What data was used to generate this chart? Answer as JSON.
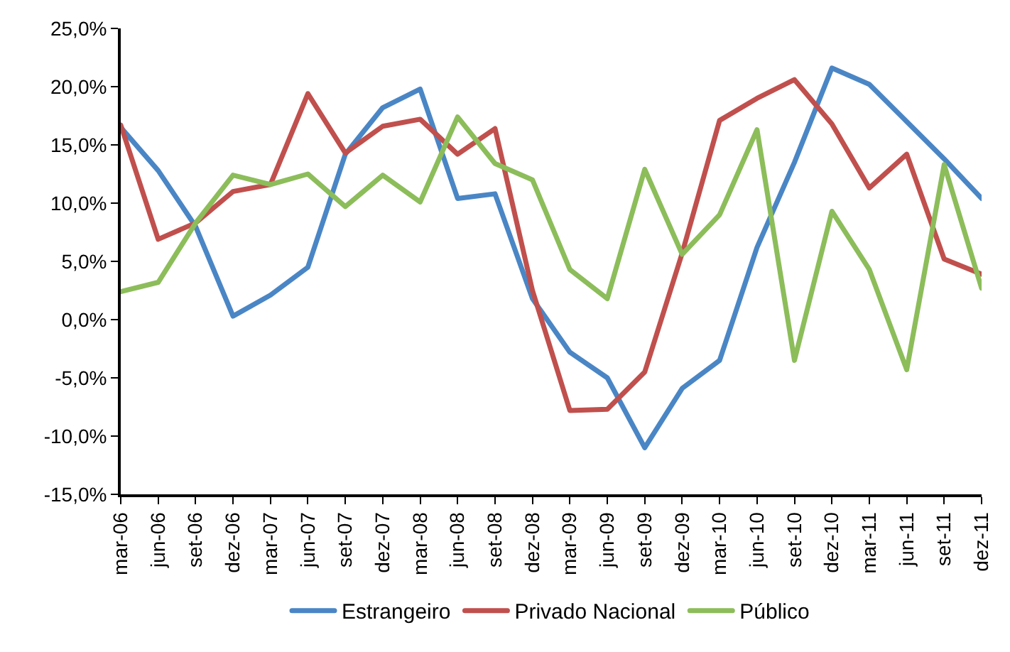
{
  "chart_data": {
    "type": "line",
    "categories": [
      "mar-06",
      "jun-06",
      "set-06",
      "dez-06",
      "mar-07",
      "jun-07",
      "set-07",
      "dez-07",
      "mar-08",
      "jun-08",
      "set-08",
      "dez-08",
      "mar-09",
      "jun-09",
      "set-09",
      "dez-09",
      "mar-10",
      "jun-10",
      "set-10",
      "dez-10",
      "mar-11",
      "jun-11",
      "set-11",
      "dez-11"
    ],
    "series": [
      {
        "name": "Estrangeiro",
        "color": "#4a86c5",
        "values": [
          16.5,
          12.8,
          8,
          0.3,
          2.1,
          4.5,
          14.2,
          18.2,
          19.8,
          10.4,
          10.8,
          1.8,
          -2.8,
          -5,
          -11,
          -5.9,
          -3.5,
          6.2,
          13.5,
          21.6,
          20.2,
          17,
          13.8,
          10.4
        ]
      },
      {
        "name": "Privado Nacional",
        "color": "#c0504d",
        "values": [
          16.7,
          6.9,
          8.3,
          11,
          11.6,
          19.4,
          14.3,
          16.6,
          17.2,
          14.2,
          16.4,
          2.5,
          -7.8,
          -7.7,
          -4.5,
          5.7,
          17.1,
          19,
          20.6,
          16.8,
          11.3,
          14.2,
          5.2,
          3.9
        ]
      },
      {
        "name": "Público",
        "color": "#8cbd5a",
        "values": [
          2.4,
          3.2,
          8.3,
          12.4,
          11.6,
          12.5,
          9.7,
          12.4,
          10.1,
          17.4,
          13.4,
          12,
          4.3,
          1.8,
          12.9,
          5.6,
          9,
          16.3,
          -3.5,
          9.3,
          4.3,
          -4.3,
          13.3,
          2.7
        ]
      }
    ],
    "ylim": [
      -15,
      25
    ],
    "yticks": [
      {
        "value": -15,
        "label": "-15,0%"
      },
      {
        "value": -10,
        "label": "-10,0%"
      },
      {
        "value": -5,
        "label": "-5,0%"
      },
      {
        "value": 0,
        "label": "0,0%"
      },
      {
        "value": 5,
        "label": "5,0%"
      },
      {
        "value": 10,
        "label": "10,0%"
      },
      {
        "value": 15,
        "label": "15,0%"
      },
      {
        "value": 20,
        "label": "20,0%"
      },
      {
        "value": 25,
        "label": "25,0%"
      }
    ],
    "legend": "bottom",
    "marker": "none",
    "line_style": "solid"
  }
}
